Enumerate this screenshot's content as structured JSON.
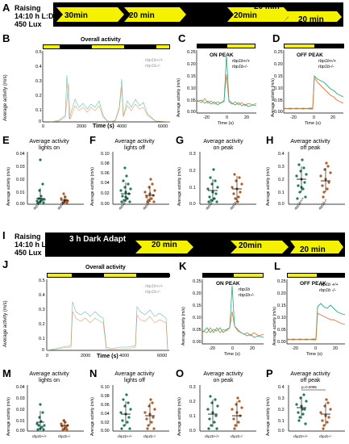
{
  "panelA": {
    "label": "A",
    "conditions": [
      "Raising",
      "14:10 h L:D",
      "450 Lux"
    ],
    "segments": [
      "30min",
      "20 min",
      "20 min",
      "20min",
      "20 min",
      "20 min"
    ]
  },
  "panelB": {
    "label": "B",
    "title": "Overall activity",
    "ylabel": "Average activity (m/s)",
    "xlabel": "Time (s)",
    "yticks": [
      "0.5",
      "0.4",
      "0.3",
      "0.2",
      "0.1",
      "0"
    ],
    "xticks": [
      "0",
      "2000",
      "4000",
      "6000"
    ],
    "legend": [
      "rbp1b+/+",
      "rbp1b-/-"
    ]
  },
  "panelC": {
    "label": "C",
    "title": "ON PEAK",
    "ylabel": "Average activity (m/s)",
    "xlabel": "Time (s)",
    "yticks": [
      "0.25",
      "0.20",
      "0.15",
      "0.10",
      "0.05",
      "0.00"
    ],
    "xticks": [
      "-20",
      "0",
      "20"
    ],
    "legend": [
      "rbp1b+/+",
      "rbp1b-/-"
    ]
  },
  "panelD": {
    "label": "D",
    "title": "OFF PEAK",
    "ylabel": "Average activity (m/s)",
    "xlabel": "Time (s)",
    "yticks": [
      "0.25",
      "0.20",
      "0.15",
      "0.10",
      "0.05",
      "0.00"
    ],
    "xticks": [
      "-20",
      "0",
      "20"
    ],
    "legend": [
      "rbp1b+/+",
      "rbp1b-/-"
    ]
  },
  "panelE": {
    "label": "E",
    "title": [
      "Average activity",
      "lights on"
    ],
    "ylabel": "Average activity (m/s)",
    "yticks": [
      "0.04",
      "0.03",
      "0.02",
      "0.01",
      "0.00"
    ],
    "xcats": [
      "rbp1b+/+",
      "rbp1b-/-"
    ]
  },
  "panelF": {
    "label": "F",
    "title": [
      "Average activity",
      "lights off"
    ],
    "ylabel": "Average activity (m/s)",
    "yticks": [
      "0.10",
      "0.08",
      "0.06",
      "0.04",
      "0.02",
      "0.00"
    ],
    "xcats": [
      "rbp1b+/+",
      "rbp1b-/-"
    ]
  },
  "panelG": {
    "label": "G",
    "title": [
      "Average activity",
      "on peak"
    ],
    "ylabel": "Average activity (m/s)",
    "yticks": [
      "0.3",
      "0.2",
      "0.1",
      "0.0"
    ],
    "xcats": [
      "rbp1b+/+",
      "rbp1b-/-"
    ]
  },
  "panelH": {
    "label": "H",
    "title": [
      "Average activity",
      "off peak"
    ],
    "ylabel": "Average activity (m/s)",
    "yticks": [
      "0.4",
      "0.3",
      "0.2",
      "0.1",
      "0.0"
    ],
    "xcats": [
      "rbp1b+/+",
      "rbp1b-/-"
    ]
  },
  "panelI": {
    "label": "I",
    "conditions": [
      "Raising",
      "14:10 h L:D",
      "450 Lux"
    ],
    "segments": [
      "3 h Dark Adapt",
      "20 min",
      "20 min",
      "20min",
      "20 min",
      "20 min"
    ]
  },
  "panelJ": {
    "label": "J",
    "title": "Overall activity",
    "ylabel": "Average activity (m/s)",
    "xlabel": "Time (s)",
    "yticks": [
      "0.5",
      "0.4",
      "0.3",
      "0.2",
      "0.1",
      "0"
    ],
    "xticks": [
      "0",
      "2000",
      "4000",
      "6000"
    ],
    "legend": [
      "rbp1b+/+",
      "rbp1b-/-"
    ]
  },
  "panelK": {
    "label": "K",
    "title": "ON PEAK",
    "ylabel": "Average activity (m/s)",
    "xlabel": "Time (s)",
    "yticks": [
      "0.25",
      "0.20",
      "0.15",
      "0.10",
      "0.05",
      "0.00"
    ],
    "xticks": [
      "-20",
      "0",
      "20"
    ],
    "legend": [
      "rbp1b",
      "rbp1b-/-"
    ]
  },
  "panelL": {
    "label": "L",
    "title": "OFF PEAK",
    "ylabel": "Average activity (m/s)",
    "xlabel": "Time (s)",
    "yticks": [
      "0.25",
      "0.20",
      "0.15",
      "0.10",
      "0.05",
      "0.00"
    ],
    "xticks": [
      "-20",
      "0",
      "20"
    ],
    "legend": [
      "rbp1b +/+",
      "rbp1b -/-"
    ]
  },
  "panelM": {
    "label": "M",
    "title": [
      "Average activity",
      "lights on"
    ],
    "ylabel": "Average activity (m/s)",
    "yticks": [
      "0.04",
      "0.03",
      "0.02",
      "0.01",
      "0.00"
    ],
    "xcats": [
      "rbp1b+/+",
      "rbp1b-/-"
    ]
  },
  "panelN": {
    "label": "N",
    "title": [
      "Average activity",
      "lights off"
    ],
    "ylabel": "Average activity (m/s)",
    "yticks": [
      "0.10",
      "0.08",
      "0.06",
      "0.04",
      "0.02",
      "0.00"
    ],
    "xcats": [
      "rbp1b+/+",
      "rbp1b-/-"
    ]
  },
  "panelO": {
    "label": "O",
    "title": [
      "Average activity",
      "on peak"
    ],
    "ylabel": "Average activity (m/s)",
    "yticks": [
      "0.3",
      "0.2",
      "0.1",
      "0.0"
    ],
    "xcats": [
      "rbp1b+/+",
      "rbp1b-/-"
    ]
  },
  "panelP": {
    "label": "P",
    "title": [
      "Average activity",
      "off peak"
    ],
    "ylabel": "Average activity (m/s)",
    "yticks": [
      "0.4",
      "0.3",
      "0.2",
      "0.1",
      "0.0"
    ],
    "xcats": [
      "rbp1b+/+",
      "rbp1b-/-"
    ],
    "annotation": "p=0.0096"
  },
  "colors": {
    "wt": "#2aa87a",
    "mut": "#e0773a",
    "light": "#f5f200",
    "dark": "#000000"
  }
}
